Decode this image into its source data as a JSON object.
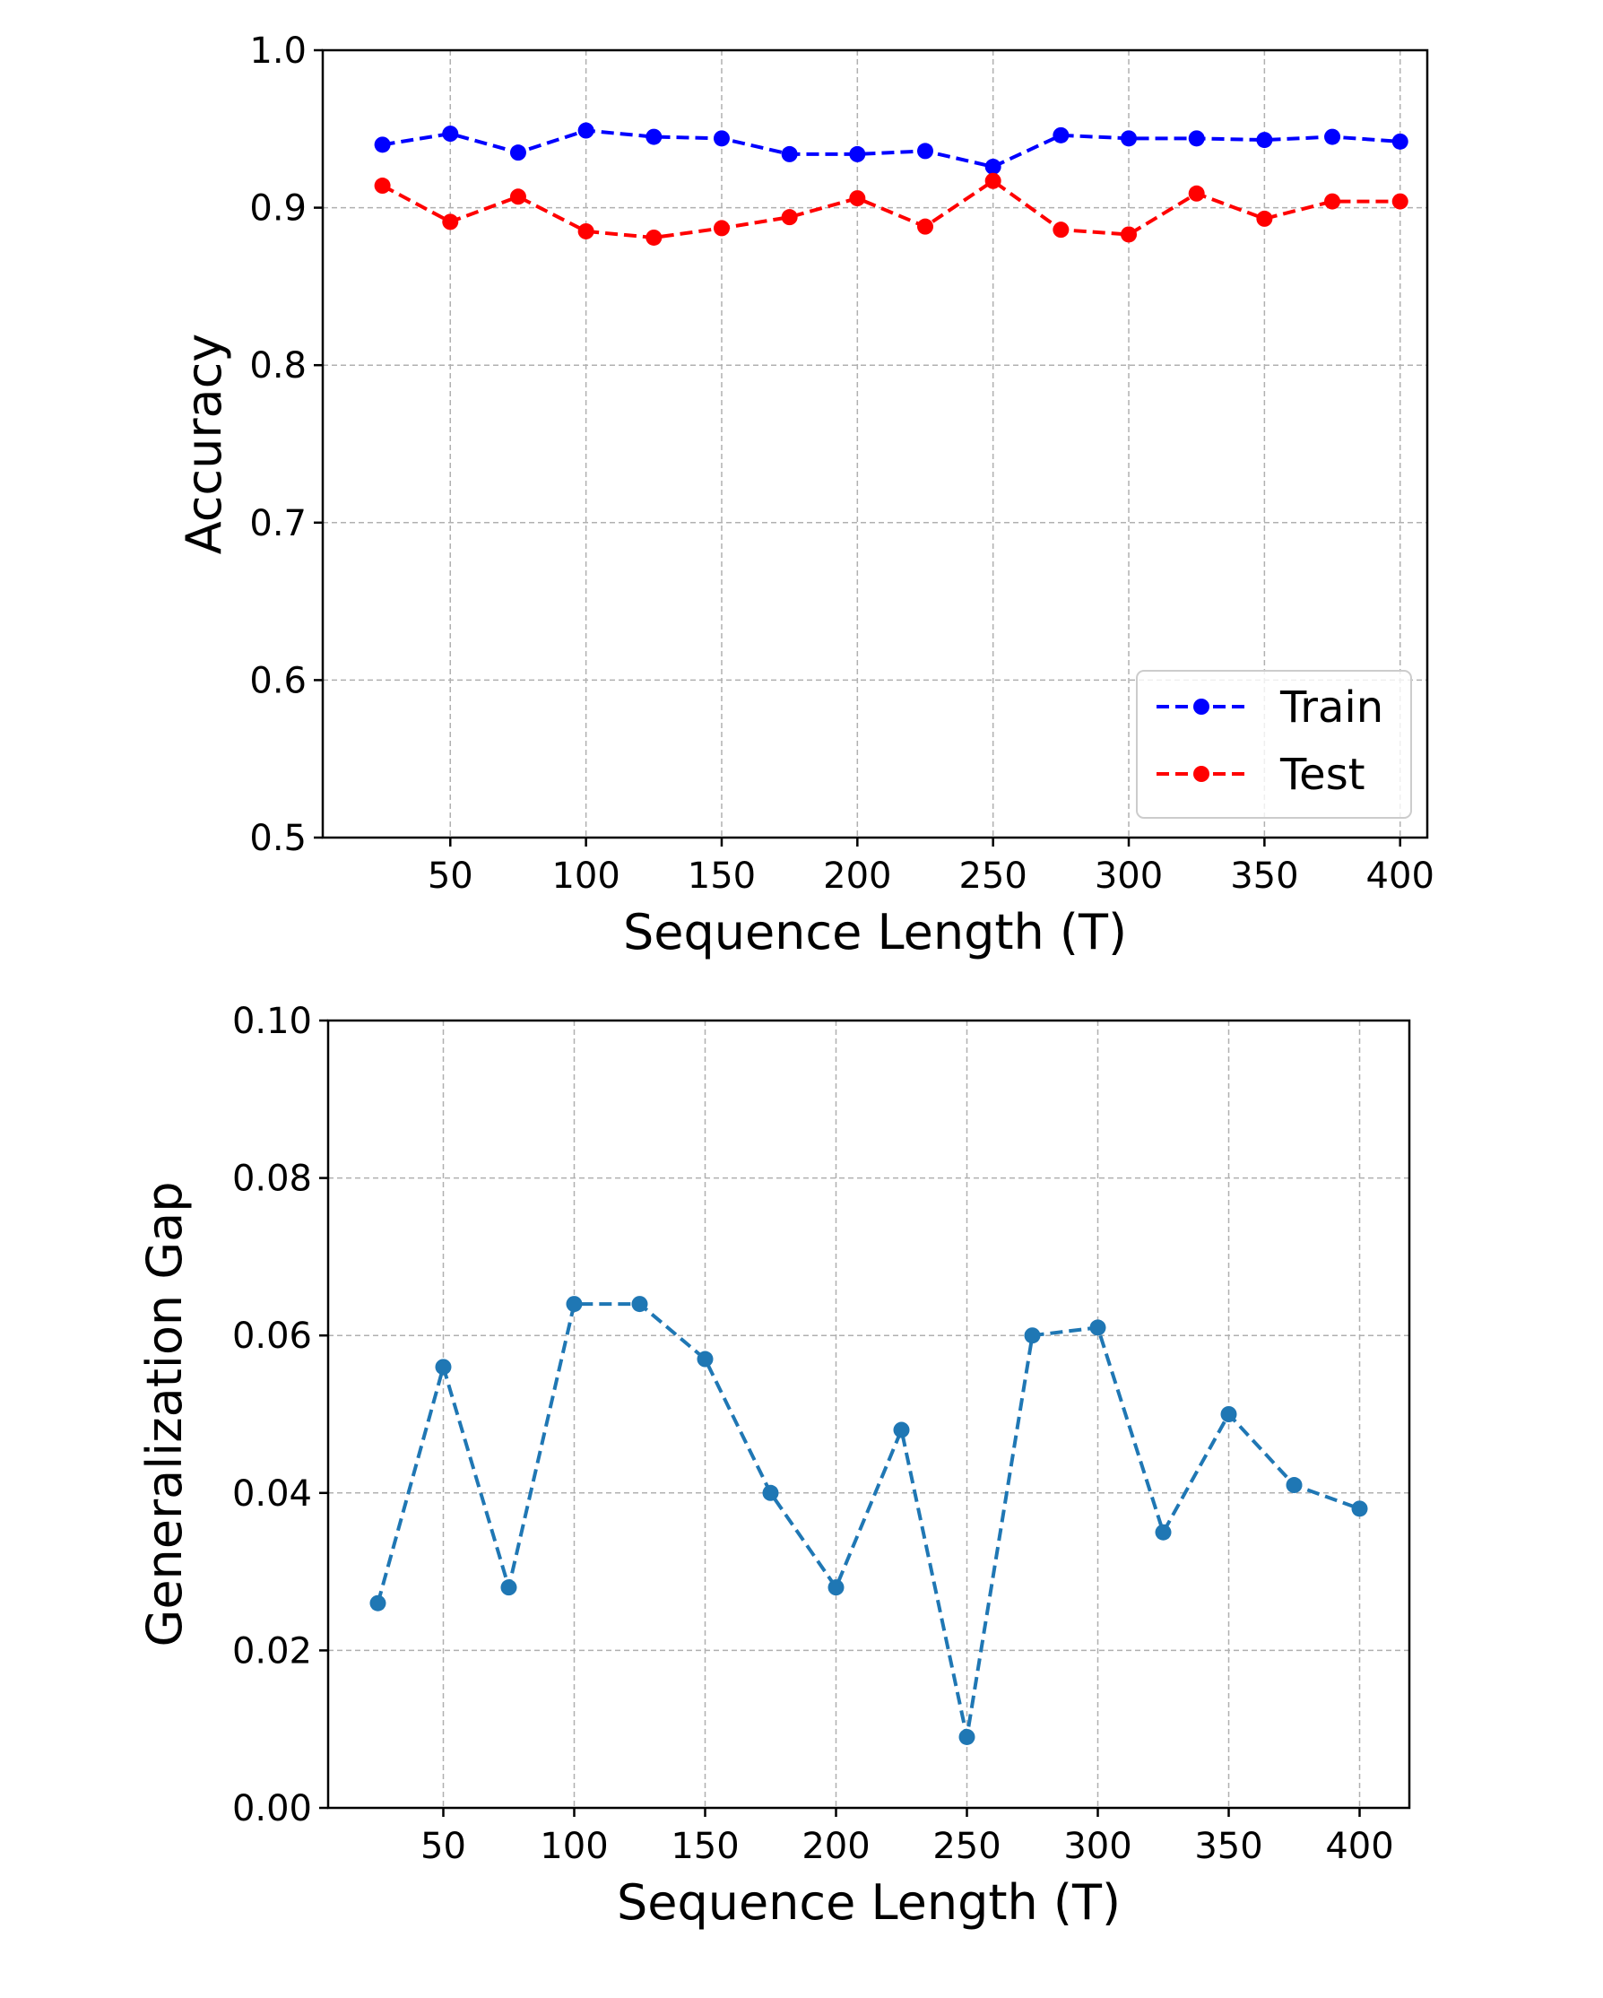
{
  "figure": {
    "background": "#ffffff"
  },
  "chart_data": [
    {
      "type": "line",
      "title": "",
      "xlabel": "Sequence Length (T)",
      "ylabel": "Accuracy",
      "xlim": [
        3,
        410
      ],
      "ylim": [
        0.5,
        1.0
      ],
      "xticks": [
        50,
        100,
        150,
        200,
        250,
        300,
        350,
        400
      ],
      "yticks": [
        0.5,
        0.6,
        0.7,
        0.8,
        0.9,
        1.0
      ],
      "ytick_labels": [
        "0.5",
        "0.6",
        "0.7",
        "0.8",
        "0.9",
        "1.0"
      ],
      "grid": true,
      "legend": {
        "position": "lower-right"
      },
      "x": [
        25,
        50,
        75,
        100,
        125,
        150,
        175,
        200,
        225,
        250,
        275,
        300,
        325,
        350,
        375,
        400
      ],
      "series": [
        {
          "name": "Train",
          "color": "#0000ff",
          "linestyle": "dashed",
          "marker": "circle",
          "values": [
            0.94,
            0.947,
            0.935,
            0.949,
            0.945,
            0.944,
            0.934,
            0.934,
            0.936,
            0.926,
            0.946,
            0.944,
            0.944,
            0.943,
            0.945,
            0.942
          ]
        },
        {
          "name": "Test",
          "color": "#ff0000",
          "linestyle": "dashed",
          "marker": "circle",
          "values": [
            0.914,
            0.891,
            0.907,
            0.885,
            0.881,
            0.887,
            0.894,
            0.906,
            0.888,
            0.917,
            0.886,
            0.883,
            0.909,
            0.893,
            0.904,
            0.904
          ]
        }
      ]
    },
    {
      "type": "line",
      "title": "",
      "xlabel": "Sequence Length (T)",
      "ylabel": "Generalization Gap",
      "xlim": [
        6,
        419
      ],
      "ylim": [
        0.0,
        0.1
      ],
      "xticks": [
        50,
        100,
        150,
        200,
        250,
        300,
        350,
        400
      ],
      "yticks": [
        0.0,
        0.02,
        0.04,
        0.06,
        0.08,
        0.1
      ],
      "ytick_labels": [
        "0.00",
        "0.02",
        "0.04",
        "0.06",
        "0.08",
        "0.10"
      ],
      "grid": true,
      "x": [
        25,
        50,
        75,
        100,
        125,
        150,
        175,
        200,
        225,
        250,
        275,
        300,
        325,
        350,
        375,
        400
      ],
      "series": [
        {
          "color": "#1f77b4",
          "linestyle": "dashed",
          "marker": "circle",
          "values": [
            0.026,
            0.056,
            0.028,
            0.064,
            0.064,
            0.057,
            0.04,
            0.028,
            0.048,
            0.009,
            0.06,
            0.061,
            0.035,
            0.05,
            0.041,
            0.038
          ]
        }
      ]
    }
  ]
}
